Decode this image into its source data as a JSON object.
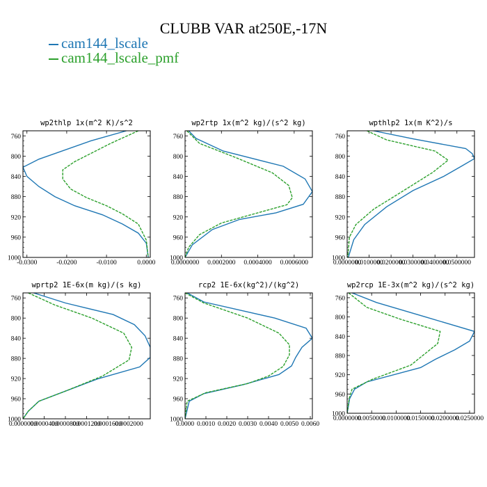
{
  "title": "CLUBB VAR at250E,-17N",
  "legend": [
    {
      "label": "cam144_lscale",
      "color": "#1f77b4"
    },
    {
      "label": "cam144_lscale_pmf",
      "color": "#2ca02c"
    }
  ],
  "chart_data": [
    {
      "type": "line",
      "title": "wp2thlp  1x(m^2 K)/s^2",
      "xlim": [
        -0.031,
        0.001
      ],
      "ylim": [
        1000,
        750
      ],
      "yticks": [
        760,
        800,
        840,
        880,
        920,
        960,
        1000
      ],
      "xticks": [
        -0.03,
        -0.02,
        -0.01,
        0.0
      ],
      "xticklabels": [
        "-0.0300",
        "-0.0200",
        "-0.0100",
        "0.0000"
      ],
      "series": [
        {
          "name": "cam144_lscale",
          "color": "#1f77b4",
          "x": [
            -0.005,
            -0.014,
            -0.027,
            -0.031,
            -0.03,
            -0.027,
            -0.023,
            -0.018,
            -0.011,
            -0.006,
            -0.002,
            0.0,
            0.0005
          ],
          "y": [
            750,
            770,
            806,
            822,
            840,
            860,
            880,
            898,
            916,
            934,
            952,
            972,
            1000
          ]
        },
        {
          "name": "cam144_lscale_pmf",
          "color": "#2ca02c",
          "x": [
            -0.002,
            -0.009,
            -0.018,
            -0.021,
            -0.021,
            -0.019,
            -0.015,
            -0.01,
            -0.006,
            -0.002,
            0.0,
            0.0005
          ],
          "y": [
            750,
            775,
            811,
            827,
            845,
            865,
            882,
            898,
            914,
            934,
            966,
            1000
          ]
        }
      ]
    },
    {
      "type": "line",
      "title": "wp2rtp  1x(m^2 kg)/(s^2 kg)",
      "xlim": [
        0,
        0.0007
      ],
      "ylim": [
        1000,
        750
      ],
      "yticks": [
        760,
        800,
        840,
        880,
        920,
        960,
        1000
      ],
      "xticks": [
        0,
        0.0002,
        0.0004,
        0.0006
      ],
      "xticklabels": [
        "0.0000000",
        "0.0002000",
        "0.0004000",
        "0.0006000"
      ],
      "series": [
        {
          "name": "cam144_lscale",
          "color": "#1f77b4",
          "x": [
            2e-05,
            6e-05,
            0.00021,
            0.00054,
            0.00066,
            0.0007,
            0.00065,
            0.0005,
            0.0003,
            0.00015,
            4e-05,
            0.0
          ],
          "y": [
            750,
            765,
            790,
            820,
            845,
            870,
            895,
            912,
            925,
            945,
            975,
            1000
          ]
        },
        {
          "name": "cam144_lscale_pmf",
          "color": "#2ca02c",
          "x": [
            1e-05,
            8e-05,
            0.00028,
            0.00048,
            0.00057,
            0.00059,
            0.00056,
            0.0004,
            0.0002,
            8e-05,
            2e-05,
            0.0
          ],
          "y": [
            750,
            775,
            803,
            833,
            858,
            882,
            896,
            912,
            932,
            955,
            980,
            1000
          ]
        }
      ]
    },
    {
      "type": "line",
      "title": "wpthlp2  1x(m K^2)/s",
      "xlim": [
        0,
        0.058
      ],
      "ylim": [
        1000,
        750
      ],
      "yticks": [
        760,
        800,
        840,
        880,
        920,
        960,
        1000
      ],
      "xticks": [
        0,
        0.01,
        0.02,
        0.03,
        0.04,
        0.05
      ],
      "xticklabels": [
        "0.0000000",
        "0.0100000",
        "0.0200000",
        "0.0300000",
        "0.0400000",
        "0.0500000"
      ],
      "series": [
        {
          "name": "cam144_lscale",
          "color": "#1f77b4",
          "x": [
            0.012,
            0.03,
            0.054,
            0.057,
            0.058,
            0.052,
            0.044,
            0.03,
            0.018,
            0.008,
            0.003,
            0.0005
          ],
          "y": [
            750,
            766,
            785,
            795,
            805,
            820,
            840,
            868,
            900,
            935,
            965,
            1000
          ]
        },
        {
          "name": "cam144_lscale_pmf",
          "color": "#2ca02c",
          "x": [
            0.009,
            0.018,
            0.04,
            0.046,
            0.039,
            0.025,
            0.012,
            0.004,
            0.001,
            0.0003
          ],
          "y": [
            750,
            768,
            790,
            808,
            832,
            870,
            905,
            935,
            960,
            1000
          ]
        }
      ]
    },
    {
      "type": "line",
      "title": "wprtp2  1E-6x(m kg)/(s kg)",
      "xlim": [
        0,
        0.00024
      ],
      "ylim": [
        1000,
        750
      ],
      "yticks": [
        760,
        800,
        840,
        880,
        920,
        960,
        1000
      ],
      "xticks": [
        0,
        4e-05,
        8e-05,
        0.00012,
        0.00016,
        0.0002
      ],
      "xticklabels": [
        "0.0000000",
        "0.0000400",
        "0.0000800",
        "0.0001200",
        "0.0001600",
        "0.0002000"
      ],
      "series": [
        {
          "name": "cam144_lscale",
          "color": "#1f77b4",
          "x": [
            2e-05,
            8e-05,
            0.00017,
            0.00021,
            0.00023,
            0.00024,
            0.00024,
            0.00022,
            0.00014,
            8e-05,
            3e-05,
            1e-05,
            0.0
          ],
          "y": [
            750,
            770,
            793,
            813,
            835,
            858,
            878,
            897,
            921,
            945,
            965,
            985,
            1000
          ]
        },
        {
          "name": "cam144_lscale_pmf",
          "color": "#2ca02c",
          "x": [
            1e-05,
            6e-05,
            0.00013,
            0.00019,
            0.000205,
            0.0002,
            0.00015,
            8e-05,
            3e-05,
            1e-05,
            0.0
          ],
          "y": [
            750,
            774,
            800,
            830,
            858,
            883,
            915,
            945,
            965,
            985,
            1000
          ]
        }
      ]
    },
    {
      "type": "line",
      "title": "rcp2  1E-6x(kg^2)/(kg^2)",
      "xlim": [
        0,
        0.0061
      ],
      "ylim": [
        1000,
        750
      ],
      "yticks": [
        760,
        800,
        840,
        880,
        920,
        960,
        1000
      ],
      "xticks": [
        0,
        0.001,
        0.002,
        0.003,
        0.004,
        0.005,
        0.006
      ],
      "xticklabels": [
        "0.0000",
        "0.0010",
        "0.0020",
        "0.0030",
        "0.0040",
        "0.0050",
        "0.0060"
      ],
      "series": [
        {
          "name": "cam144_lscale",
          "color": "#1f77b4",
          "x": [
            0.0001,
            0.0009,
            0.0043,
            0.0058,
            0.0061,
            0.0056,
            0.0053,
            0.0051,
            0.0045,
            0.0028,
            0.0009,
            0.0002,
            0.0
          ],
          "y": [
            750,
            768,
            800,
            820,
            840,
            858,
            878,
            895,
            912,
            932,
            950,
            965,
            1000
          ]
        },
        {
          "name": "cam144_lscale_pmf",
          "color": "#2ca02c",
          "x": [
            0.0,
            0.0009,
            0.003,
            0.0045,
            0.005,
            0.005,
            0.0047,
            0.004,
            0.003,
            0.001,
            0.0001,
            0.0
          ],
          "y": [
            750,
            770,
            800,
            830,
            853,
            873,
            896,
            915,
            930,
            948,
            965,
            1000
          ]
        }
      ]
    },
    {
      "type": "line",
      "title": "wp2rcp  1E-3x(m^2 kg)/(s^2 kg)",
      "xlim": [
        0,
        0.026
      ],
      "ylim": [
        1000,
        750
      ],
      "yticks": [
        760,
        800,
        840,
        880,
        920,
        960,
        1000
      ],
      "xticks": [
        0,
        0.005,
        0.01,
        0.015,
        0.02,
        0.025
      ],
      "xticklabels": [
        "0.0000000",
        "0.0050000",
        "0.0100000",
        "0.0150000",
        "0.0200000",
        "0.0250000"
      ],
      "series": [
        {
          "name": "cam144_lscale",
          "color": "#1f77b4",
          "x": [
            0.001,
            0.006,
            0.016,
            0.026,
            0.025,
            0.022,
            0.018,
            0.015,
            0.004,
            0.0015,
            0.0005,
            0.0
          ],
          "y": [
            750,
            770,
            800,
            830,
            850,
            868,
            888,
            905,
            935,
            950,
            970,
            1000
          ]
        },
        {
          "name": "cam144_lscale_pmf",
          "color": "#2ca02c",
          "x": [
            0.0003,
            0.004,
            0.011,
            0.019,
            0.0185,
            0.013,
            0.005,
            0.001,
            0.0004,
            0.0
          ],
          "y": [
            750,
            780,
            805,
            830,
            855,
            900,
            930,
            950,
            970,
            1000
          ]
        }
      ]
    }
  ]
}
